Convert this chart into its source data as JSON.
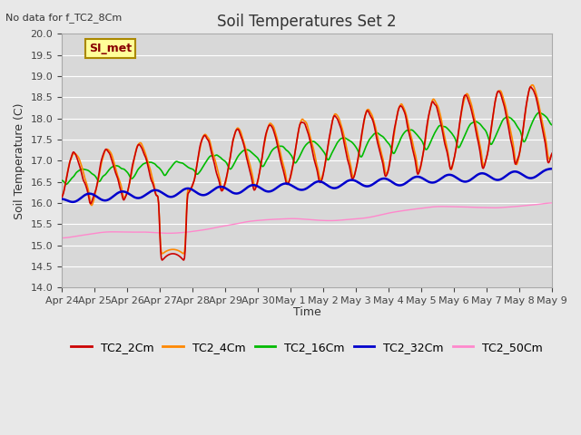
{
  "title": "Soil Temperatures Set 2",
  "subtitle": "No data for f_TC2_8Cm",
  "ylabel": "Soil Temperature (C)",
  "xlabel": "Time",
  "ylim": [
    14.0,
    20.0
  ],
  "yticks": [
    14.0,
    14.5,
    15.0,
    15.5,
    16.0,
    16.5,
    17.0,
    17.5,
    18.0,
    18.5,
    19.0,
    19.5,
    20.0
  ],
  "bg_color": "#e8e8e8",
  "plot_bg_color": "#d8d8d8",
  "grid_color": "#ffffff",
  "annotation_text": "SI_met",
  "annotation_box_color": "#ffff99",
  "annotation_box_edge": "#aa8800",
  "series_colors": {
    "TC2_2Cm": "#cc0000",
    "TC2_4Cm": "#ff8800",
    "TC2_16Cm": "#00bb00",
    "TC2_32Cm": "#0000cc",
    "TC2_50Cm": "#ff88cc"
  },
  "legend_entries": [
    "TC2_2Cm",
    "TC2_4Cm",
    "TC2_16Cm",
    "TC2_32Cm",
    "TC2_50Cm"
  ],
  "x_tick_labels": [
    "Apr 24",
    "Apr 25",
    "Apr 26",
    "Apr 27",
    "Apr 28",
    "Apr 29",
    "Apr 30",
    "May 1",
    "May 2",
    "May 3",
    "May 4",
    "May 5",
    "May 6",
    "May 7",
    "May 8",
    "May 9"
  ],
  "num_points": 720,
  "figsize": [
    6.4,
    4.8
  ],
  "dpi": 100
}
